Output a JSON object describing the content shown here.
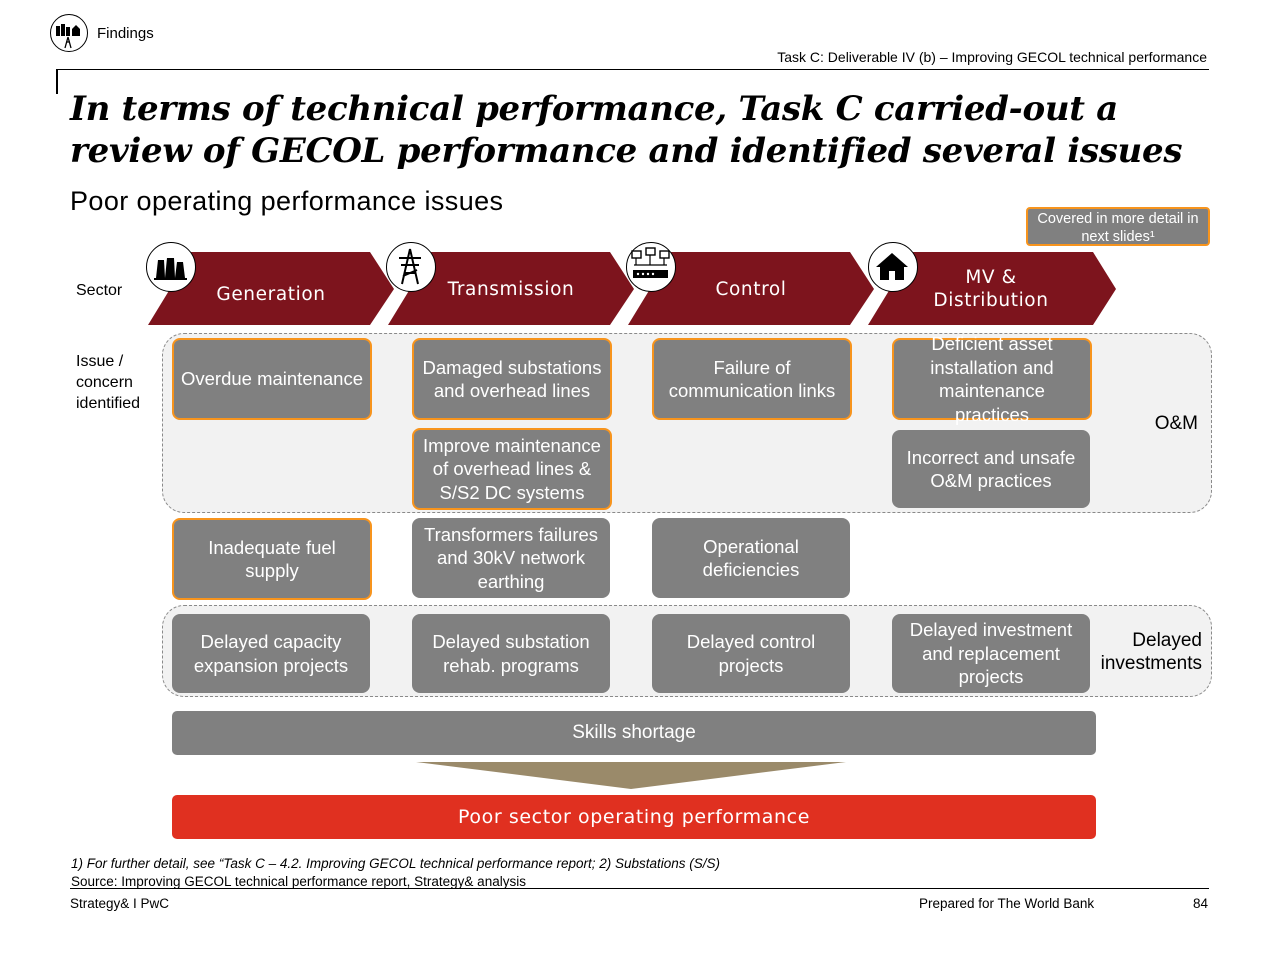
{
  "header": {
    "section_label": "Findings",
    "task_reference": "Task C: Deliverable IV (b) – Improving GECOL technical performance"
  },
  "title": "In terms of technical performance, Task C carried-out a review of GECOL performance and identified several issues",
  "subtitle": "Poor operating performance issues",
  "legend": {
    "label": "Covered in more detail in next slides¹",
    "highlight_color": "#f7941d"
  },
  "row_labels": {
    "sector": "Sector",
    "issue": "Issue / concern identified"
  },
  "colors": {
    "chevron": "#7d141d",
    "box": "#808080",
    "highlight": "#f7941d",
    "outcome": "#e03020",
    "funnel": "#9a8a6a"
  },
  "sectors": [
    {
      "label": "Generation",
      "icon": "power-plant-icon"
    },
    {
      "label": "Transmission",
      "icon": "transmission-tower-icon"
    },
    {
      "label": "Control",
      "icon": "network-control-icon"
    },
    {
      "label": "MV & Distribution",
      "icon": "house-icon"
    }
  ],
  "bands": {
    "om_label": "O&M",
    "delayed_label": "Delayed investments"
  },
  "issues": {
    "generation_overdue": "Overdue maintenance",
    "transmission_damaged": "Damaged substations and overhead lines",
    "control_failure": "Failure of communication links",
    "distribution_deficient": "Deficient asset installation and maintenance practices",
    "transmission_improve": "Improve maintenance of overhead lines & S/S2 DC systems",
    "distribution_incorrect": "Incorrect and unsafe O&M practices",
    "generation_fuel": "Inadequate fuel supply",
    "transmission_transformers": "Transformers failures and 30kV network earthing",
    "control_operational": "Operational deficiencies",
    "generation_delayed": "Delayed capacity expansion projects",
    "transmission_delayed": "Delayed substation rehab. programs",
    "control_delayed": "Delayed control projects",
    "distribution_delayed": "Delayed investment and replacement projects"
  },
  "skills": "Skills shortage",
  "outcome": "Poor sector operating performance",
  "footnote": {
    "line1": "1) For further detail, see “Task C – 4.2. Improving GECOL technical performance report; 2) Substations (S/S)",
    "line2": "Source: Improving GECOL technical performance report, Strategy& analysis"
  },
  "footer": {
    "left": "Strategy& I PwC",
    "right": "Prepared for The World Bank",
    "page": "84"
  }
}
